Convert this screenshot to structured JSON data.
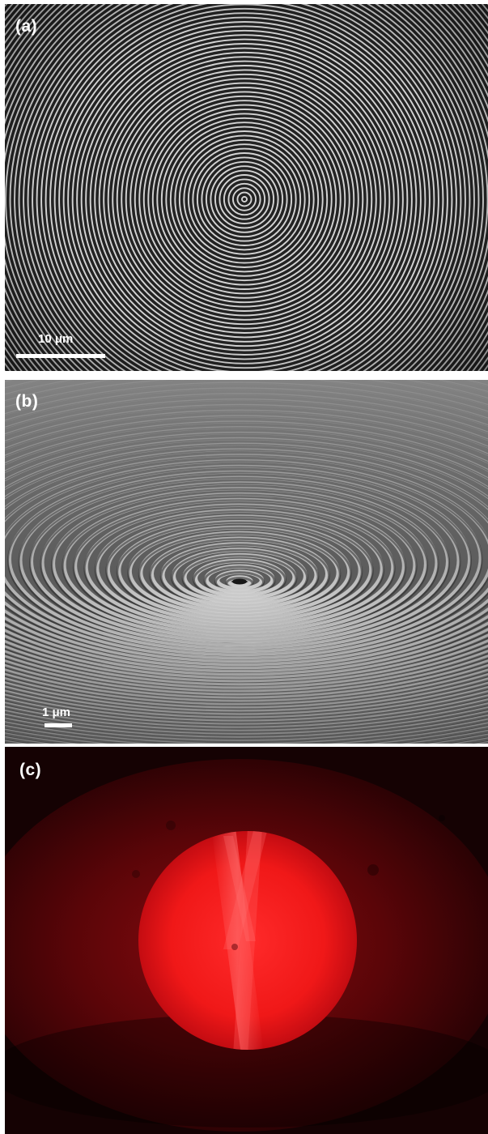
{
  "panels": [
    {
      "label": "(a)",
      "scale_bar": "10 μm"
    },
    {
      "label": "(b)",
      "scale_bar": "1 μm"
    },
    {
      "label": "(c)"
    }
  ],
  "colors": {
    "sem_dark": "#1e1e1e",
    "sem_light": "#e8e8e8",
    "laser_red": "#ff1414",
    "laser_background": "#150203"
  }
}
